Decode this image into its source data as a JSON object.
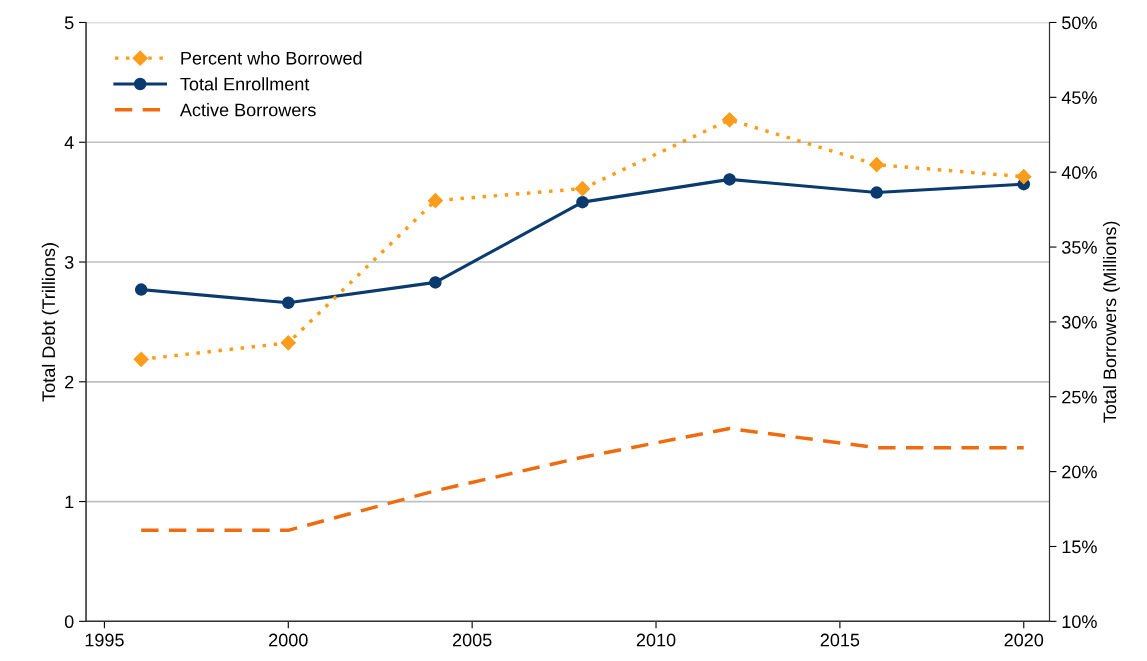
{
  "chart_data": {
    "type": "line",
    "xlabel": null,
    "ylabel": "Total Debt (Trillions)",
    "y2label": "Total Borrowers (Millions)",
    "x": [
      1996,
      2000,
      2004,
      2008,
      2012,
      2016,
      2020
    ],
    "series": [
      {
        "name": "Percent who Borrowed",
        "color": "#fb9d1c",
        "marker": "diamond",
        "line_style": "dotted",
        "axis": "y2",
        "values": [
          27.5,
          28.6,
          38.1,
          38.9,
          43.5,
          40.5,
          39.7
        ]
      },
      {
        "name": "Total Enrollment",
        "color": "#0b3a6e",
        "marker": "circle",
        "line_style": "solid",
        "values": [
          2.77,
          2.66,
          2.83,
          3.5,
          3.69,
          3.58,
          3.65
        ]
      },
      {
        "name": "Active Borrowers",
        "color": "#ee6c0f",
        "marker": "none",
        "line_style": "dashed",
        "values": [
          0.76,
          0.76,
          1.09,
          1.37,
          1.61,
          1.45,
          1.45
        ]
      }
    ],
    "xlim": [
      1994.5,
      2020.7
    ],
    "xticks": [
      1995,
      2000,
      2005,
      2010,
      2015,
      2020
    ],
    "ylim": [
      0,
      5
    ],
    "yticks": [
      0,
      1,
      2,
      3,
      4,
      5
    ],
    "y2lim": [
      10,
      50
    ],
    "y2ticks": [
      {
        "value": 10,
        "label": "10%"
      },
      {
        "value": 15,
        "label": "15%"
      },
      {
        "value": 20,
        "label": "20%"
      },
      {
        "value": 25,
        "label": "25%"
      },
      {
        "value": 30,
        "label": "30%"
      },
      {
        "value": 35,
        "label": "35%"
      },
      {
        "value": 40,
        "label": "40%"
      },
      {
        "value": 45,
        "label": "45%"
      },
      {
        "value": 50,
        "label": "50%"
      }
    ],
    "grid": "y",
    "legend": "top left"
  }
}
